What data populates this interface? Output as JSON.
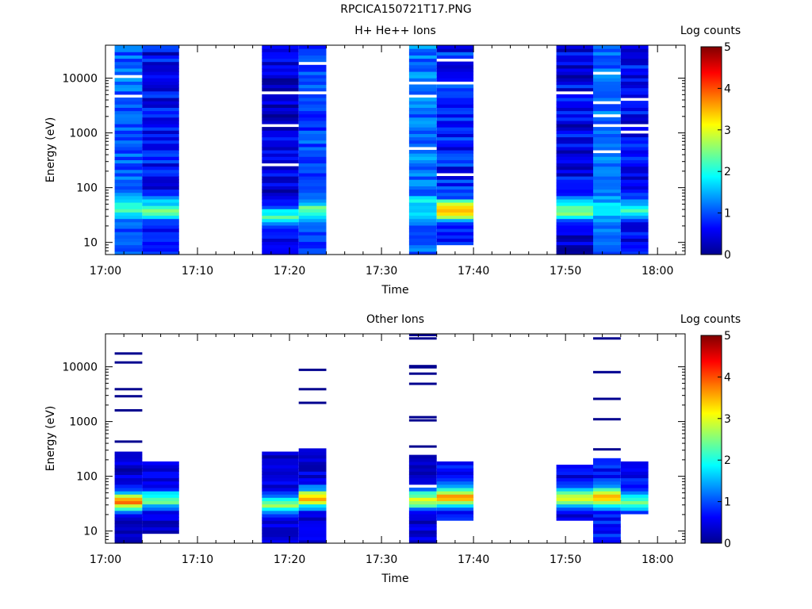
{
  "figure_title": "RPCICA150721T17.PNG",
  "chart_data": [
    {
      "type": "heatmap",
      "title": "H+ He++ Ions",
      "xlabel": "Time",
      "ylabel": "Energy (eV)",
      "yscale": "log",
      "ylim": [
        6,
        40000
      ],
      "xlim": [
        "17:00",
        "18:03"
      ],
      "xticks": [
        "17:00",
        "17:10",
        "17:20",
        "17:30",
        "17:40",
        "17:50",
        "18:00"
      ],
      "yticks": [
        "10",
        "100",
        "1000",
        "10000"
      ],
      "colorbar": {
        "label": "Log counts",
        "range": [
          0,
          5
        ],
        "ticks": [
          "0",
          "1",
          "2",
          "3",
          "4",
          "5"
        ]
      },
      "columns": [
        {
          "x_start": "17:01",
          "x_end": "17:04",
          "lo": 6,
          "hi": 40000,
          "peak_e": 40,
          "peak_v": 2.2,
          "bg": 1.1,
          "var": 0.35,
          "seed": 11
        },
        {
          "x_start": "17:04",
          "x_end": "17:08",
          "lo": 6,
          "hi": 40000,
          "peak_e": 40,
          "peak_v": 2.5,
          "bg": 0.6,
          "var": 0.45,
          "seed": 23
        },
        {
          "x_start": "17:17",
          "x_end": "17:21",
          "lo": 6,
          "hi": 40000,
          "peak_e": 32,
          "peak_v": 2.1,
          "bg": 0.45,
          "var": 0.4,
          "seed": 37
        },
        {
          "x_start": "17:21",
          "x_end": "17:24",
          "lo": 6,
          "hi": 40000,
          "peak_e": 40,
          "peak_v": 2.3,
          "bg": 0.95,
          "var": 0.35,
          "seed": 41
        },
        {
          "x_start": "17:33",
          "x_end": "17:36",
          "lo": 6,
          "hi": 40000,
          "peak_e": 45,
          "peak_v": 1.9,
          "bg": 1.2,
          "var": 0.35,
          "seed": 53
        },
        {
          "x_start": "17:36",
          "x_end": "17:40",
          "lo": 9,
          "hi": 40000,
          "peak_e": 40,
          "peak_v": 3.8,
          "bg": 0.75,
          "var": 0.45,
          "seed": 67
        },
        {
          "x_start": "17:49",
          "x_end": "17:53",
          "lo": 6,
          "hi": 40000,
          "peak_e": 40,
          "peak_v": 2.6,
          "bg": 0.55,
          "var": 0.45,
          "seed": 71
        },
        {
          "x_start": "17:53",
          "x_end": "17:56",
          "lo": 6,
          "hi": 40000,
          "peak_e": 40,
          "peak_v": 2.0,
          "bg": 1.15,
          "var": 0.3,
          "seed": 83
        },
        {
          "x_start": "17:56",
          "x_end": "17:59",
          "lo": 6,
          "hi": 40000,
          "peak_e": 40,
          "peak_v": 2.1,
          "bg": 0.65,
          "var": 0.4,
          "seed": 97
        }
      ]
    },
    {
      "type": "heatmap",
      "title": "Other Ions",
      "xlabel": "Time",
      "ylabel": "Energy (eV)",
      "yscale": "log",
      "ylim": [
        6,
        40000
      ],
      "xlim": [
        "17:00",
        "18:03"
      ],
      "xticks": [
        "17:00",
        "17:10",
        "17:20",
        "17:30",
        "17:40",
        "17:50",
        "18:00"
      ],
      "yticks": [
        "10",
        "100",
        "1000",
        "10000"
      ],
      "colorbar": {
        "label": "Log counts",
        "range": [
          0,
          5
        ],
        "ticks": [
          "0",
          "1",
          "2",
          "3",
          "4",
          "5"
        ]
      },
      "columns": [
        {
          "x_start": "17:01",
          "x_end": "17:04",
          "lo": 6,
          "hi": 300,
          "peak_e": 35,
          "peak_v": 3.7,
          "bg": 0.4,
          "var": 0.3,
          "seed": 101,
          "sparse": [
            430,
            1600,
            2900,
            3900,
            12000,
            17500
          ]
        },
        {
          "x_start": "17:04",
          "x_end": "17:08",
          "lo": 9,
          "hi": 190,
          "peak_e": 38,
          "peak_v": 2.4,
          "bg": 0.4,
          "var": 0.3,
          "seed": 113,
          "sparse": []
        },
        {
          "x_start": "17:17",
          "x_end": "17:21",
          "lo": 6,
          "hi": 270,
          "peak_e": 30,
          "peak_v": 2.4,
          "bg": 0.4,
          "var": 0.3,
          "seed": 127,
          "sparse": []
        },
        {
          "x_start": "17:21",
          "x_end": "17:24",
          "lo": 6,
          "hi": 320,
          "peak_e": 40,
          "peak_v": 3.4,
          "bg": 0.5,
          "var": 0.3,
          "seed": 131,
          "sparse": [
            2200,
            3900,
            8800
          ]
        },
        {
          "x_start": "17:33",
          "x_end": "17:36",
          "lo": 6,
          "hi": 230,
          "peak_e": 38,
          "peak_v": 2.9,
          "bg": 0.45,
          "var": 0.3,
          "seed": 149,
          "sparse": [
            350,
            1050,
            1200,
            4900,
            7500,
            9800,
            10300,
            33000,
            38000
          ]
        },
        {
          "x_start": "17:36",
          "x_end": "17:40",
          "lo": 15,
          "hi": 190,
          "peak_e": 42,
          "peak_v": 3.6,
          "bg": 0.6,
          "var": 0.3,
          "seed": 151,
          "sparse": []
        },
        {
          "x_start": "17:49",
          "x_end": "17:53",
          "lo": 15,
          "hi": 165,
          "peak_e": 40,
          "peak_v": 2.8,
          "bg": 0.5,
          "var": 0.3,
          "seed": 163,
          "sparse": []
        },
        {
          "x_start": "17:53",
          "x_end": "17:56",
          "lo": 6,
          "hi": 220,
          "peak_e": 42,
          "peak_v": 3.4,
          "bg": 0.7,
          "var": 0.3,
          "seed": 173,
          "sparse": [
            310,
            1100,
            2600,
            8000,
            33000
          ]
        },
        {
          "x_start": "17:56",
          "x_end": "17:59",
          "lo": 20,
          "hi": 190,
          "peak_e": 35,
          "peak_v": 2.3,
          "bg": 0.7,
          "var": 0.3,
          "seed": 181,
          "sparse": []
        }
      ]
    }
  ]
}
